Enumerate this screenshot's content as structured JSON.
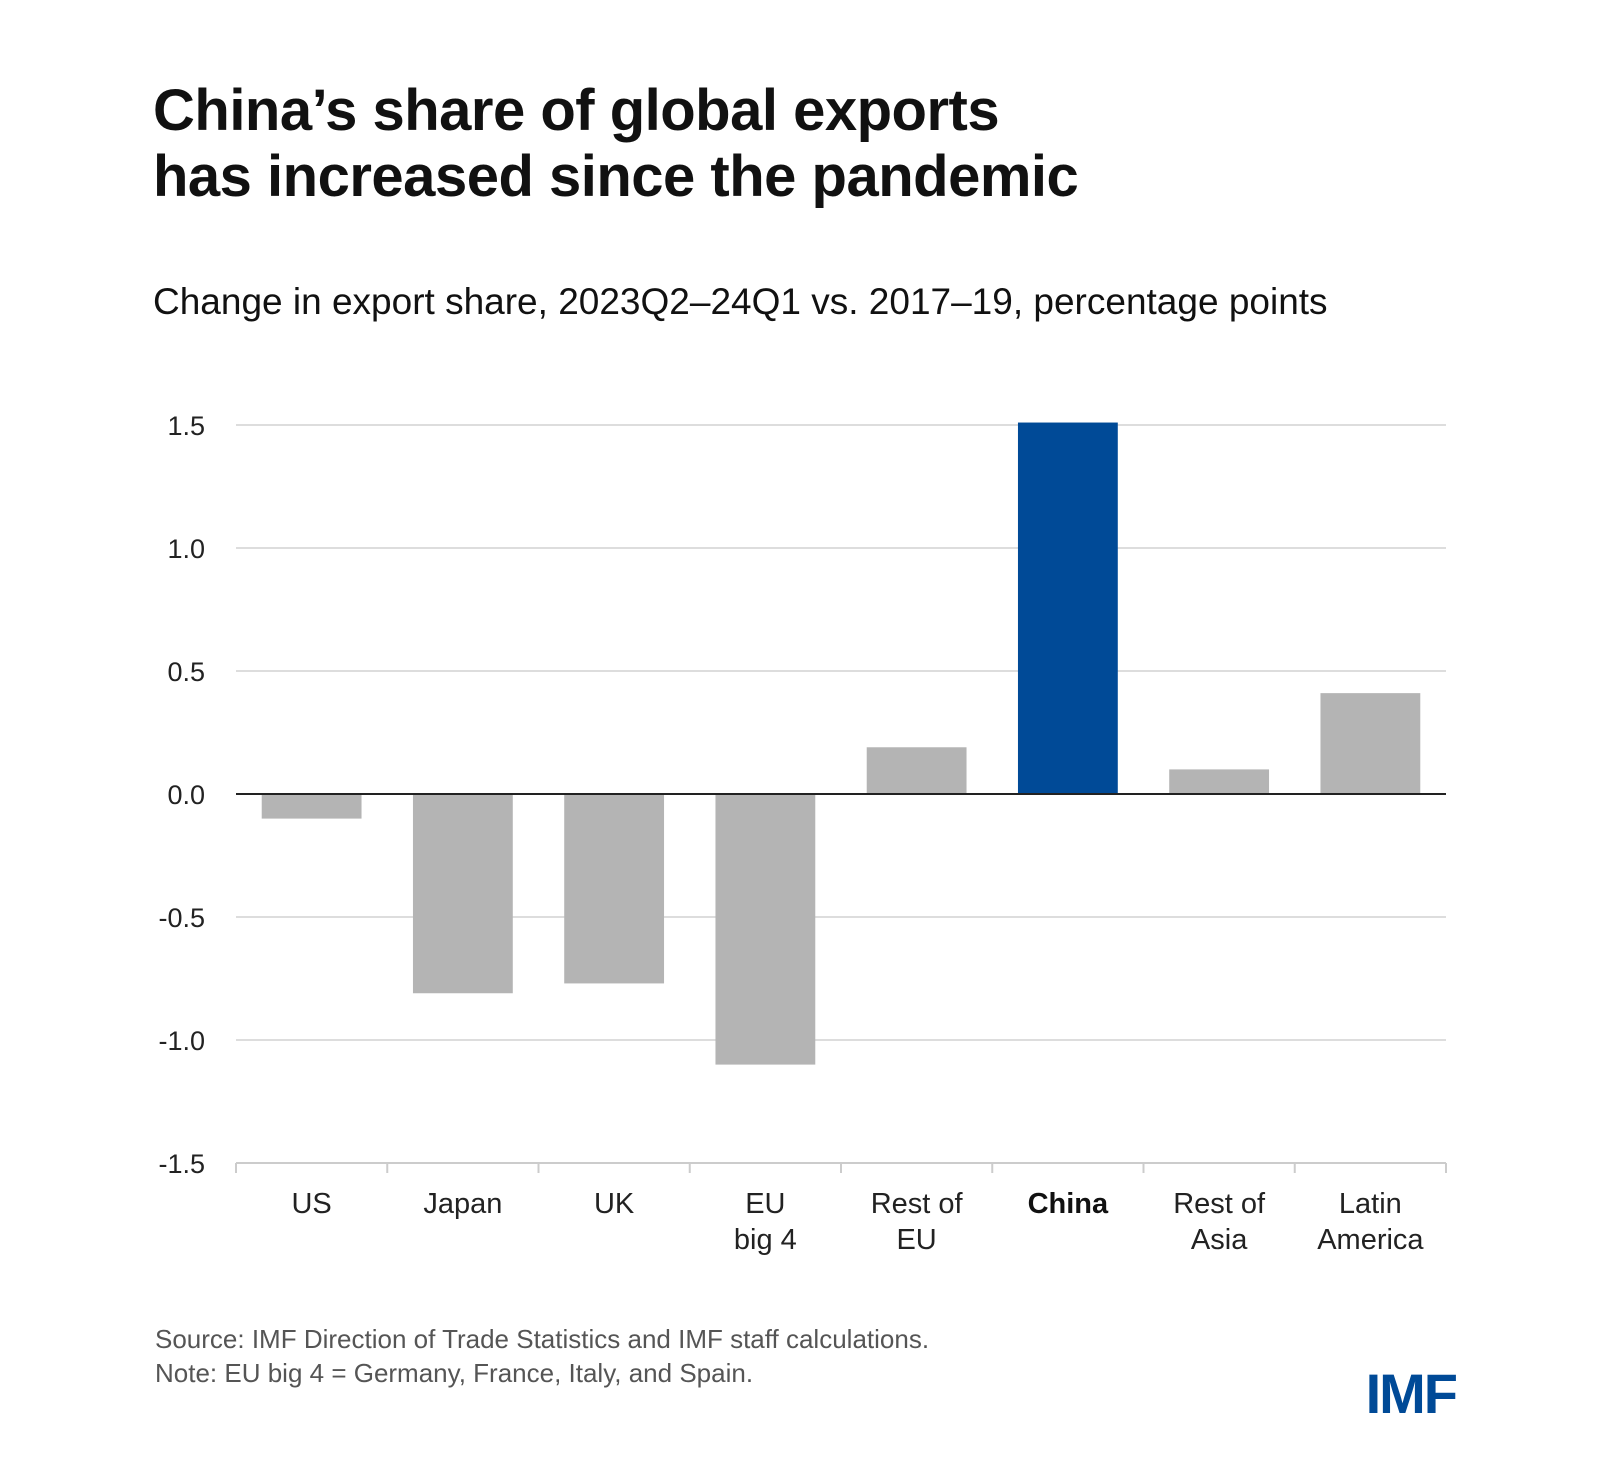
{
  "title_lines": [
    "China’s share of global exports",
    "has increased since the pandemic"
  ],
  "subtitle": "Change in export share, 2023Q2–24Q1 vs. 2017–19, percentage points",
  "chart_data": {
    "type": "bar",
    "title": "China’s share of global exports has increased since the pandemic",
    "subtitle": "Change in export share, 2023Q2–24Q1 vs. 2017–19, percentage points",
    "categories": [
      [
        "US"
      ],
      [
        "Japan"
      ],
      [
        "UK"
      ],
      [
        "EU",
        "big 4"
      ],
      [
        "Rest of",
        "EU"
      ],
      [
        "China"
      ],
      [
        "Rest of",
        "Asia"
      ],
      [
        "Latin",
        "America"
      ]
    ],
    "values": [
      -0.1,
      -0.81,
      -0.77,
      -1.1,
      0.19,
      1.51,
      0.1,
      0.41
    ],
    "highlight_index": 5,
    "ylim": [
      -1.5,
      1.5
    ],
    "yticks": [
      1.5,
      1.0,
      0.5,
      0.0,
      -0.5,
      -1.0,
      -1.5
    ],
    "ytick_labels": [
      "1.5",
      "1.0",
      "0.5",
      "0.0",
      "-0.5",
      "-1.0",
      "-1.5"
    ],
    "xlabel": "",
    "ylabel": "",
    "grid": true
  },
  "colors": {
    "bar_default": "#b4b4b4",
    "bar_highlight": "#004a97",
    "gridline": "#dddddd",
    "zero_line": "#222222",
    "logo": "#004a97"
  },
  "footer": {
    "source": "Source: IMF Direction of Trade Statistics and IMF staff calculations.",
    "note": "Note: EU big 4 = Germany, France, Italy, and Spain."
  },
  "logo_text": "IMF"
}
